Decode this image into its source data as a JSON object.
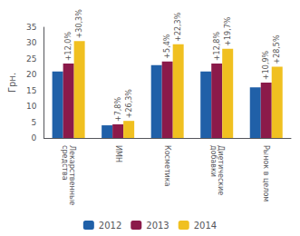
{
  "chart_data": {
    "type": "bar",
    "categories": [
      "Лекарственные\nсредства",
      "ИМН",
      "Косметика",
      "Диетические\nдобавки",
      "Рынок в целом"
    ],
    "series": [
      {
        "name": "2012",
        "color": "#2060a8",
        "values": [
          21,
          4,
          23,
          21,
          16
        ]
      },
      {
        "name": "2013",
        "color": "#8b1a4a",
        "values": [
          23.5,
          4.3,
          24.2,
          23.5,
          17.5
        ],
        "annotations": [
          "+12,0%",
          "+7,8%",
          "+5,4%",
          "+12,8%",
          "+10,9%"
        ]
      },
      {
        "name": "2014",
        "color": "#f0c020",
        "values": [
          30.6,
          5.4,
          29.6,
          28.2,
          22.5
        ],
        "annotations": [
          "+30,3%",
          "+26,3%",
          "+22,3%",
          "+19,7%",
          "+28,5%"
        ]
      }
    ],
    "ylabel": "Грн.",
    "ylim": [
      0,
      35
    ],
    "yticks": [
      0,
      5,
      10,
      15,
      20,
      25,
      30,
      35
    ],
    "grid": false,
    "legend": "bottom"
  }
}
